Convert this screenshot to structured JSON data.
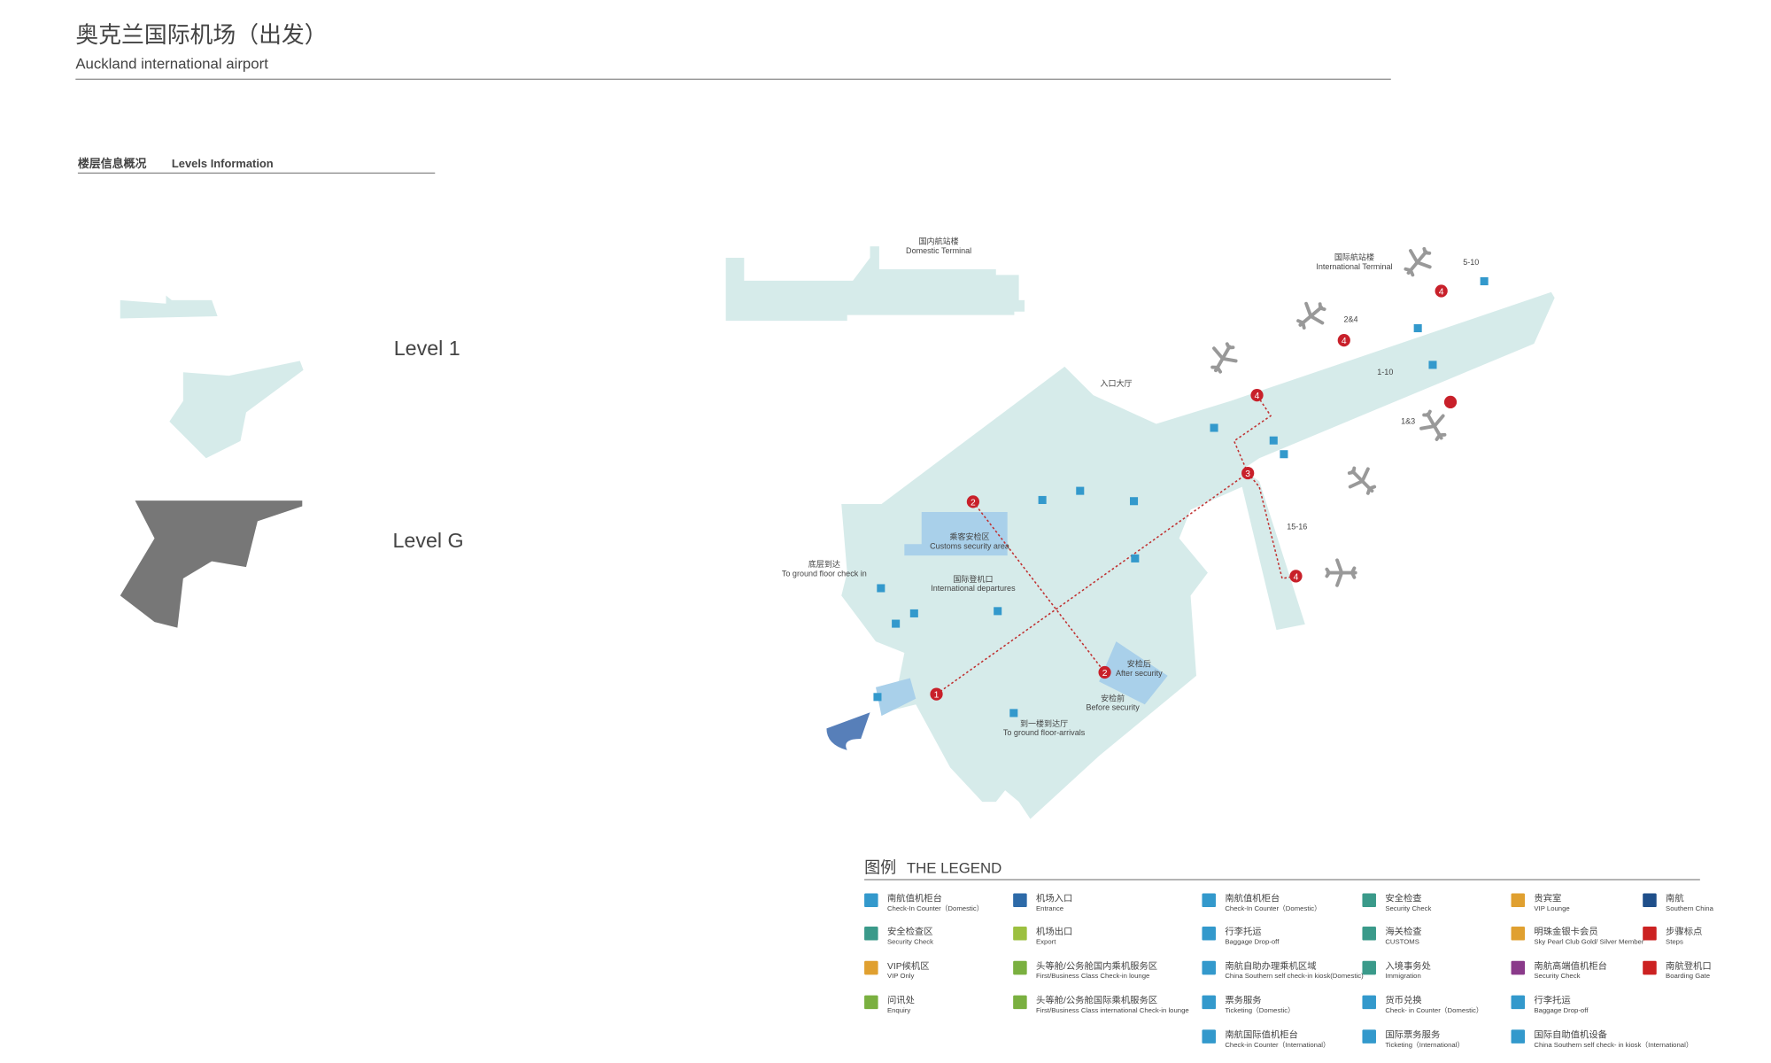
{
  "header": {
    "title": "奥克兰国际机场（出发）",
    "subtitle": "Auckland international airport"
  },
  "levels": {
    "title_cn": "楼层信息概况",
    "title_en": "Levels Information",
    "items": [
      "Level 1",
      "Level G"
    ]
  },
  "map": {
    "labels": [
      {
        "cn": "国内航站楼",
        "en": "Domestic Terminal"
      },
      {
        "cn": "国际航站楼",
        "en": "International Terminal"
      },
      {
        "cn": "入口大厅",
        "en": null
      },
      {
        "cn": "底层到达",
        "en": "To ground floor check in"
      },
      {
        "cn": "乘客安检区",
        "en": "Customs security area"
      },
      {
        "cn": "国际登机口",
        "en": "International departures"
      },
      {
        "cn": "安检后",
        "en": "After security"
      },
      {
        "cn": "安检前",
        "en": "Before security"
      },
      {
        "cn": "到一楼到达厅",
        "en": "To ground floor-arrivals"
      }
    ],
    "gates": [
      "5-10",
      "2&4",
      "1-10",
      "1&3",
      "15-16"
    ],
    "steps": [
      "1",
      "2",
      "2",
      "3",
      "4",
      "4",
      "4",
      "4"
    ]
  },
  "legend": {
    "title_cn": "图例",
    "title_en": "THE LEGEND",
    "columns": [
      [
        {
          "cn": "南航值机柜台",
          "en": "Check-In Counter（Domestic）",
          "color": "#3399cc"
        },
        {
          "cn": "安全检查区",
          "en": "Security Check",
          "color": "#3a9a8a"
        },
        {
          "cn": "VIP候机区",
          "en": "VIP Only",
          "color": "#e0a030"
        },
        {
          "cn": "问讯处",
          "en": "Enquiry",
          "color": "#7ab040"
        }
      ],
      [
        {
          "cn": "机场入口",
          "en": "Entrance",
          "color": "#2d6aa8"
        },
        {
          "cn": "机场出口",
          "en": "Export",
          "color": "#9cc040"
        },
        {
          "cn": "头等舱/公务舱国内乘机服务区",
          "en": "First/Business Class Check-in lounge",
          "color": "#7ab040"
        },
        {
          "cn": "头等舱/公务舱国际乘机服务区",
          "en": "First/Business Class international Check-in lounge",
          "color": "#7ab040"
        }
      ],
      [
        {
          "cn": "南航值机柜台",
          "en": "Check-In Counter（Domestic）",
          "color": "#3399cc"
        },
        {
          "cn": "行李托运",
          "en": "Baggage Drop-off",
          "color": "#3399cc"
        },
        {
          "cn": "南航自助办理乘机区域",
          "en": "China Southern self check-in kiosk(Domestic)",
          "color": "#3399cc"
        },
        {
          "cn": "票务服务",
          "en": "Ticketing（Domestic）",
          "color": "#3399cc"
        },
        {
          "cn": "南航国际值机柜台",
          "en": "Check-in Counter（International）",
          "color": "#3399cc"
        }
      ],
      [
        {
          "cn": "安全检查",
          "en": "Security Check",
          "color": "#3a9a8a"
        },
        {
          "cn": "海关检查",
          "en": "CUSTOMS",
          "color": "#3a9a8a"
        },
        {
          "cn": "入境事务处",
          "en": "Immigration",
          "color": "#3a9a8a"
        },
        {
          "cn": "货币兑换",
          "en": "Check- in Counter（Domestic）",
          "color": "#3399cc"
        },
        {
          "cn": "国际票务服务",
          "en": "Ticketing（International）",
          "color": "#3399cc"
        }
      ],
      [
        {
          "cn": "贵宾室",
          "en": "VIP Lounge",
          "color": "#e0a030"
        },
        {
          "cn": "明珠金银卡会员",
          "en": "Sky Pearl Club Gold/ Silver Member",
          "color": "#e0a030"
        },
        {
          "cn": "南航高端值机柜台",
          "en": "Security Check",
          "color": "#8a3a8a"
        },
        {
          "cn": "行李托运",
          "en": "Baggage Drop-off",
          "color": "#3399cc"
        },
        {
          "cn": "国际自助值机设备",
          "en": "China Southern self check- in kiosk（International）",
          "color": "#3399cc"
        }
      ],
      [
        {
          "cn": "南航",
          "en": "Southern China",
          "color": "#1f4f8a"
        },
        {
          "cn": "步骤标点",
          "en": "Steps",
          "color": "#cc2222"
        },
        {
          "cn": "南航登机口",
          "en": "Boarding Gate",
          "color": "#cc2222"
        }
      ]
    ]
  }
}
